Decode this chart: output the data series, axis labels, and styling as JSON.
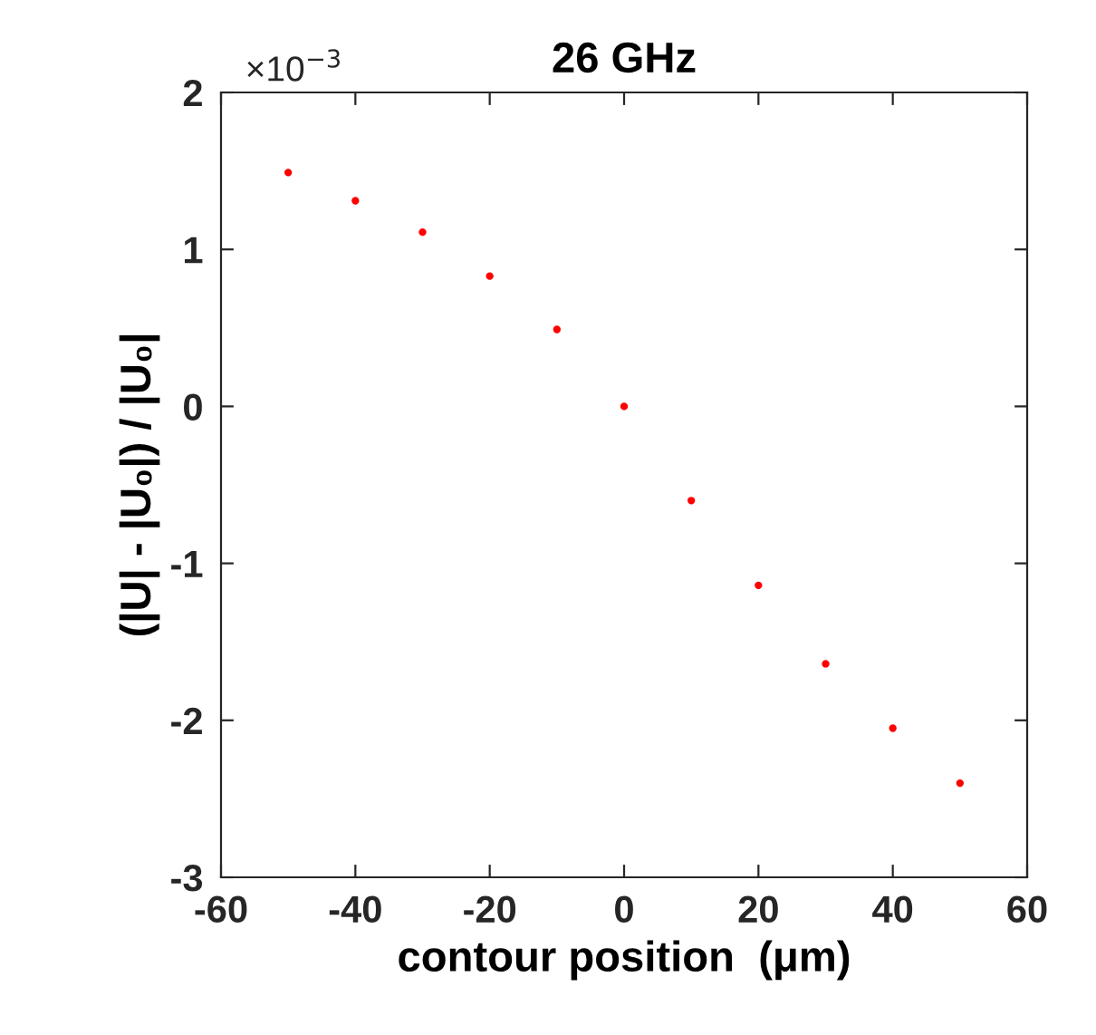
{
  "chart_data": {
    "type": "scatter",
    "title": "26 GHz",
    "xlabel": "contour position  (μm)",
    "ylabel": "(|U| - |U₀|) / |U₀|",
    "annotations": [
      "×10$^{−3}$"
    ],
    "x": [
      -50,
      -40,
      -30,
      -20,
      -10,
      0,
      10,
      20,
      30,
      40,
      50
    ],
    "series": [
      {
        "color": "#ff0000",
        "values": [
          1.49,
          1.31,
          1.11,
          0.83,
          0.49,
          0,
          -0.6,
          -1.14,
          -1.64,
          -2.05,
          -2.4
        ]
      }
    ],
    "xlim": [
      -60,
      60
    ],
    "xticks": [
      -60,
      -40,
      -20,
      0,
      20,
      40,
      60
    ],
    "ylim": [
      -3,
      2
    ],
    "yticks": [
      -3,
      -2,
      -1,
      0,
      1,
      2
    ],
    "grid": false,
    "marker": "circle"
  }
}
